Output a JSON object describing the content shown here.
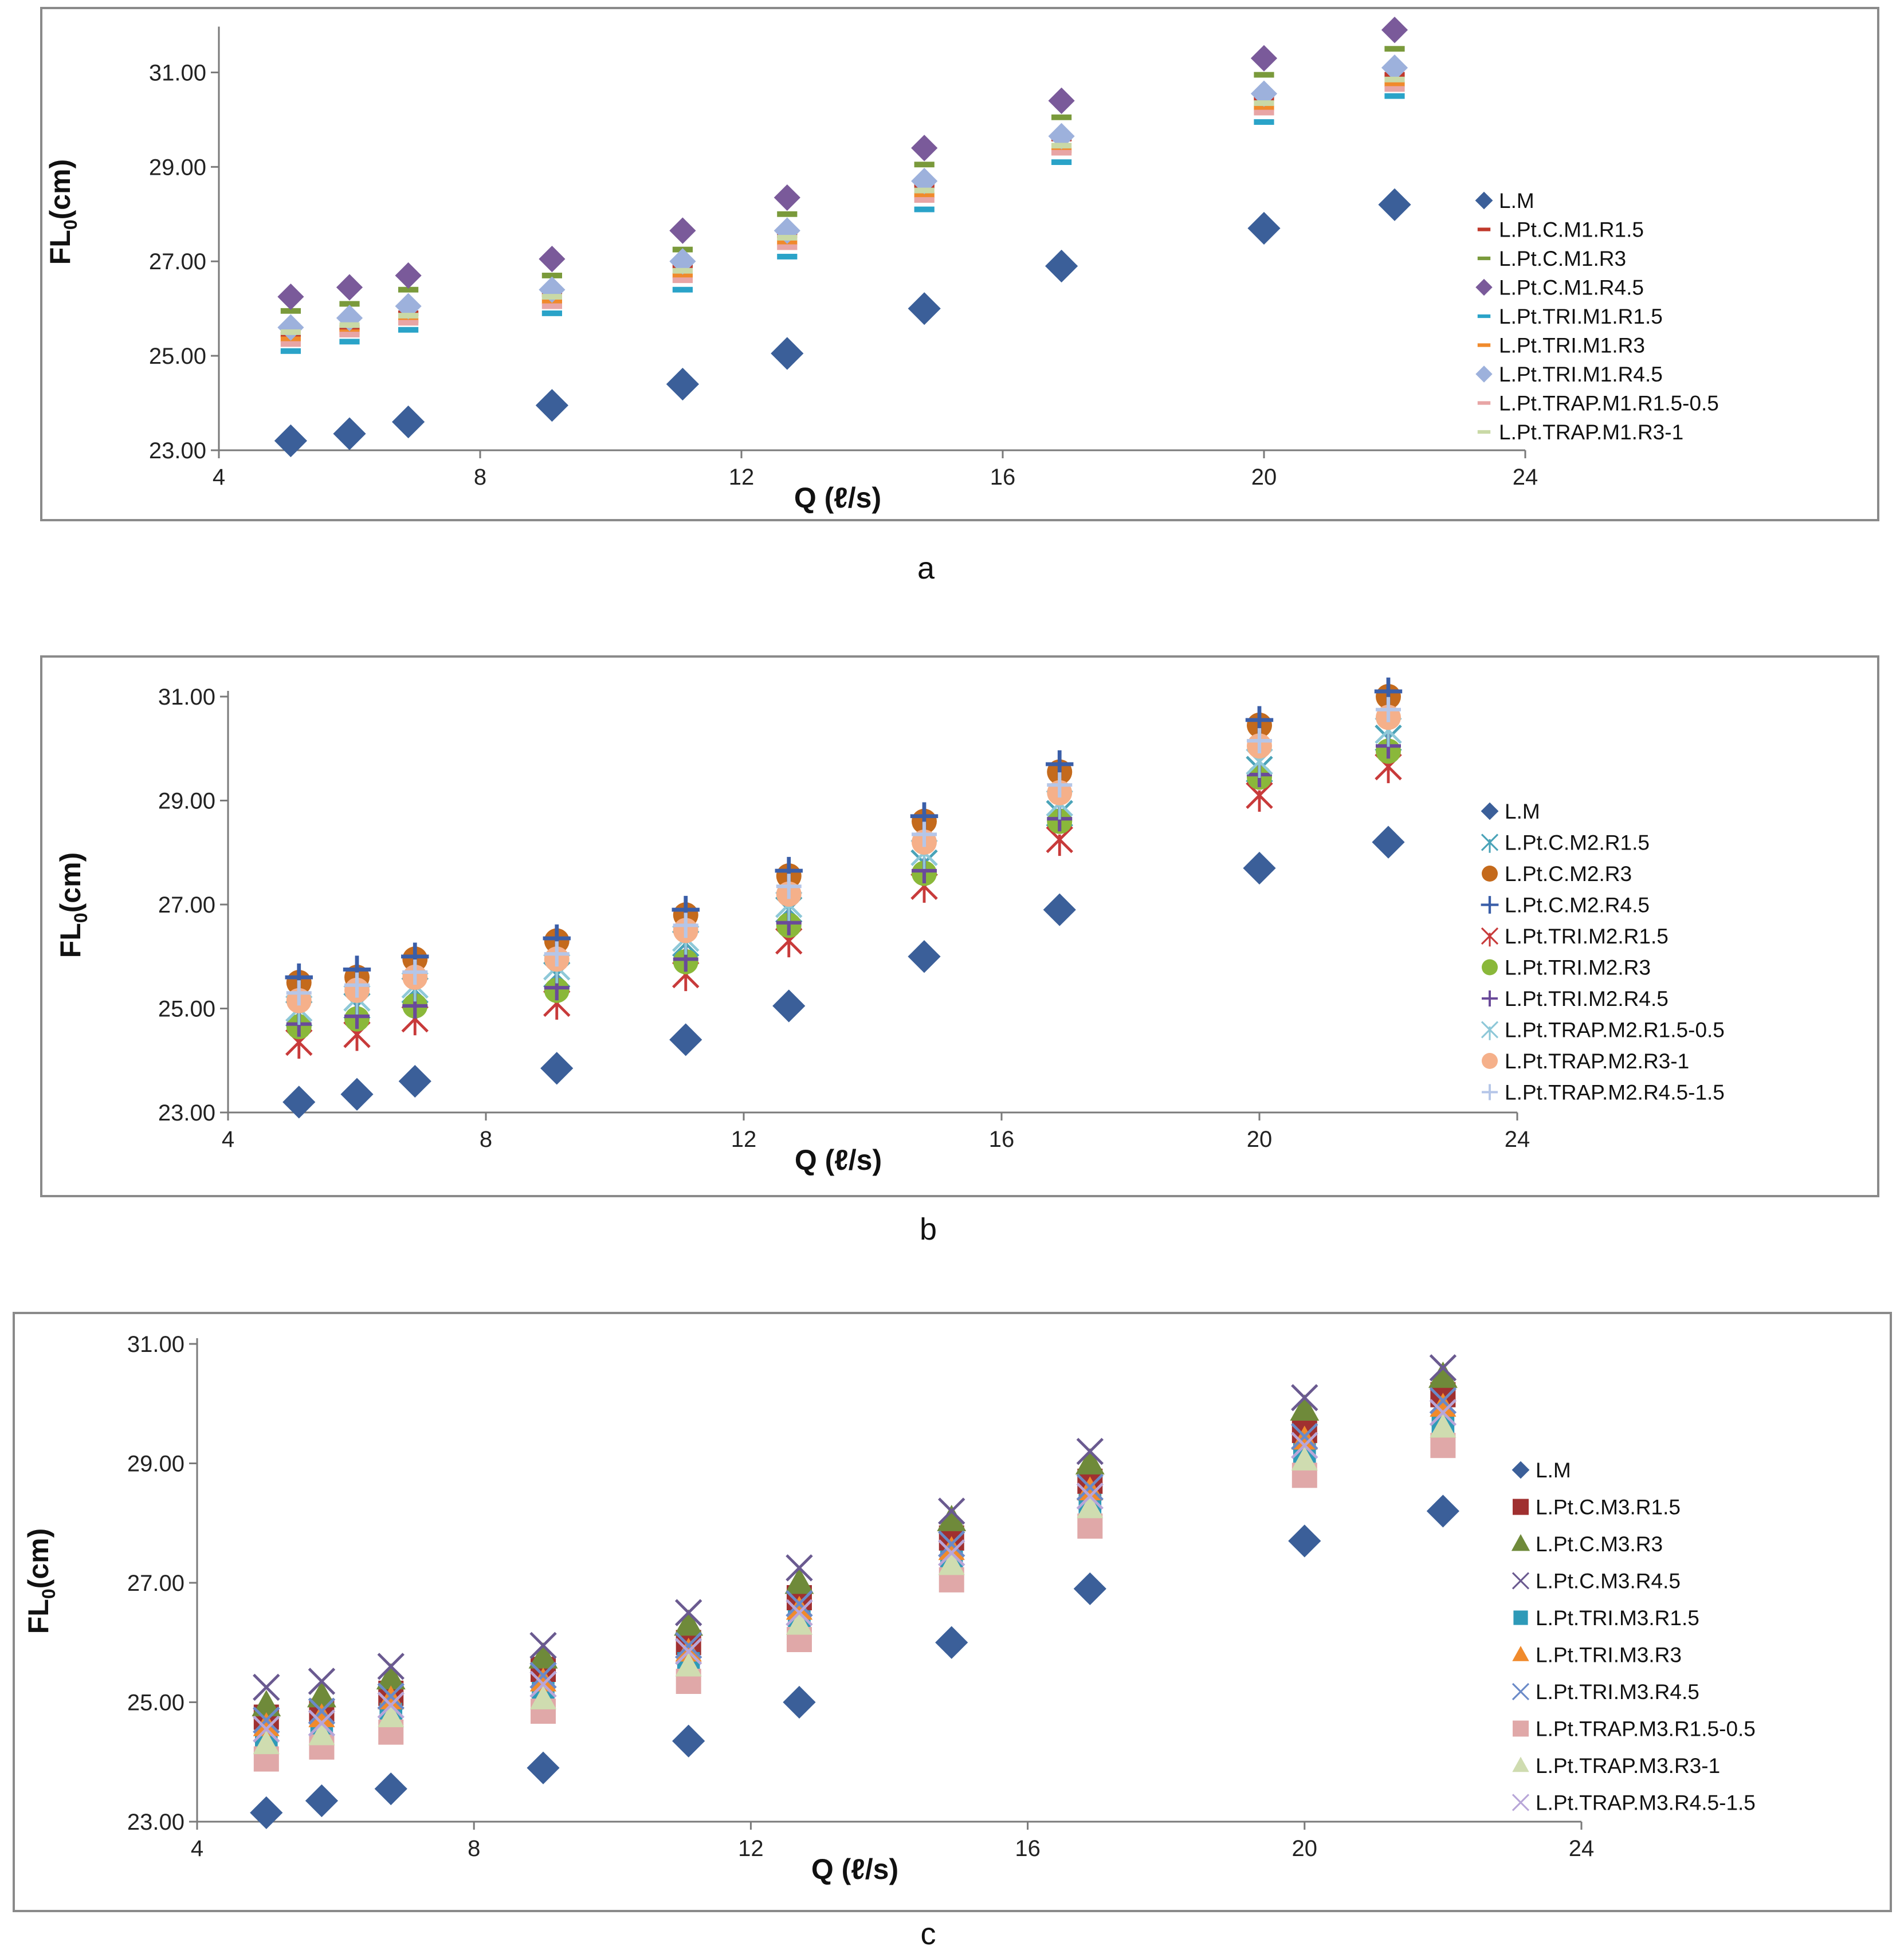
{
  "chart_data": [
    {
      "type": "scatter",
      "caption": "a",
      "xlabel": "Q (ℓ/s)",
      "ylabel_main": "FL",
      "ylabel_sub": "0",
      "ylabel_unit": "(cm)",
      "xlim": [
        4,
        24
      ],
      "ylim": [
        23,
        32
      ],
      "xticks": [
        4,
        8,
        12,
        16,
        20,
        24
      ],
      "yticks": [
        "23.00",
        "25.00",
        "27.00",
        "29.00",
        "31.00"
      ],
      "yticks_values": [
        23,
        25,
        27,
        29,
        31
      ],
      "legend_position": "right",
      "x": [
        5.1,
        6.0,
        6.9,
        9.1,
        11.1,
        12.7,
        14.8,
        16.9,
        20.0,
        22.0
      ],
      "series": [
        {
          "name": "L.M",
          "marker": "diamond",
          "color": "#3b5f99",
          "size": 1.3,
          "values": [
            23.2,
            23.35,
            23.6,
            23.95,
            24.4,
            25.05,
            26.0,
            26.9,
            27.7,
            28.2
          ]
        },
        {
          "name": "L.Pt.C.M1.R1.5",
          "marker": "dash",
          "color": "#c0392b",
          "size": 0.8,
          "values": [
            25.45,
            25.6,
            25.9,
            26.3,
            26.9,
            27.55,
            28.6,
            29.6,
            30.45,
            30.95
          ]
        },
        {
          "name": "L.Pt.C.M1.R3",
          "marker": "dash",
          "color": "#7a9a3b",
          "size": 0.8,
          "values": [
            25.95,
            26.1,
            26.4,
            26.7,
            27.25,
            28.0,
            29.05,
            30.05,
            30.95,
            31.5
          ]
        },
        {
          "name": "L.Pt.C.M1.R4.5",
          "marker": "diamond",
          "color": "#7a5a9a",
          "size": 1.05,
          "values": [
            26.25,
            26.45,
            26.7,
            27.05,
            27.65,
            28.35,
            29.4,
            30.4,
            31.3,
            31.9
          ]
        },
        {
          "name": "L.Pt.TRI.M1.R1.5",
          "marker": "dash",
          "color": "#2aa3c8",
          "size": 0.8,
          "values": [
            25.1,
            25.3,
            25.55,
            25.9,
            26.4,
            27.1,
            28.1,
            29.1,
            29.95,
            30.5
          ]
        },
        {
          "name": "L.Pt.TRI.M1.R3",
          "marker": "dash",
          "color": "#f08a2c",
          "size": 0.8,
          "values": [
            25.35,
            25.5,
            25.75,
            26.15,
            26.7,
            27.4,
            28.4,
            29.35,
            30.25,
            30.75
          ]
        },
        {
          "name": "L.Pt.TRI.M1.R4.5",
          "marker": "diamond",
          "color": "#9db1dc",
          "size": 1.05,
          "values": [
            25.6,
            25.8,
            26.05,
            26.4,
            27.0,
            27.65,
            28.7,
            29.65,
            30.55,
            31.1
          ]
        },
        {
          "name": "L.Pt.TRAP.M1.R1.5-0.5",
          "marker": "dash",
          "color": "#e8a5a5",
          "size": 0.8,
          "values": [
            25.25,
            25.45,
            25.7,
            26.05,
            26.6,
            27.3,
            28.3,
            29.3,
            30.15,
            30.65
          ]
        },
        {
          "name": "L.Pt.TRAP.M1.R3-1",
          "marker": "dash",
          "color": "#c9d9a6",
          "size": 0.8,
          "values": [
            25.5,
            25.65,
            25.85,
            26.25,
            26.8,
            27.5,
            28.5,
            29.45,
            30.35,
            30.85
          ]
        }
      ]
    },
    {
      "type": "scatter",
      "caption": "b",
      "xlabel": "Q (ℓ/s)",
      "ylabel_main": "FL",
      "ylabel_sub": "0",
      "ylabel_unit": "(cm)",
      "xlim": [
        4,
        24
      ],
      "ylim": [
        23,
        31
      ],
      "xticks": [
        4,
        8,
        12,
        16,
        20,
        24
      ],
      "yticks": [
        "23.00",
        "25.00",
        "27.00",
        "29.00",
        "31.00"
      ],
      "yticks_values": [
        23,
        25,
        27,
        29,
        31
      ],
      "legend_position": "right",
      "x": [
        5.1,
        6.0,
        6.9,
        9.1,
        11.1,
        12.7,
        14.8,
        16.9,
        20.0,
        22.0
      ],
      "series": [
        {
          "name": "L.M",
          "marker": "diamond",
          "color": "#3b5f99",
          "size": 1.3,
          "values": [
            23.2,
            23.35,
            23.6,
            23.85,
            24.4,
            25.05,
            26.0,
            26.9,
            27.7,
            28.2
          ]
        },
        {
          "name": "L.Pt.C.M2.R1.5",
          "marker": "xstar",
          "color": "#4aa3b8",
          "size": 1.0,
          "values": [
            24.9,
            25.05,
            25.35,
            25.65,
            26.25,
            26.9,
            27.8,
            28.75,
            29.6,
            30.2
          ]
        },
        {
          "name": "L.Pt.C.M2.R3",
          "marker": "circle",
          "color": "#c46a1c",
          "size": 1.0,
          "values": [
            25.5,
            25.6,
            25.95,
            26.3,
            26.8,
            27.55,
            28.6,
            29.55,
            30.45,
            31.0
          ]
        },
        {
          "name": "L.Pt.C.M2.R4.5",
          "marker": "plus",
          "color": "#3a5ea8",
          "size": 1.1,
          "values": [
            25.6,
            25.75,
            26.0,
            26.35,
            26.9,
            27.65,
            28.7,
            29.7,
            30.55,
            31.1
          ]
        },
        {
          "name": "L.Pt.TRI.M2.R1.5",
          "marker": "xstar",
          "color": "#c83a3a",
          "size": 1.0,
          "values": [
            24.35,
            24.5,
            24.8,
            25.1,
            25.65,
            26.3,
            27.35,
            28.25,
            29.1,
            29.65
          ]
        },
        {
          "name": "L.Pt.TRI.M2.R3",
          "marker": "circle",
          "color": "#8ab83a",
          "size": 1.0,
          "values": [
            24.65,
            24.8,
            25.05,
            25.35,
            25.9,
            26.6,
            27.6,
            28.6,
            29.45,
            29.95
          ]
        },
        {
          "name": "L.Pt.TRI.M2.R4.5",
          "marker": "plus",
          "color": "#6a4a9a",
          "size": 1.0,
          "values": [
            24.7,
            24.85,
            25.05,
            25.4,
            25.95,
            26.65,
            27.65,
            28.65,
            29.5,
            30.05
          ]
        },
        {
          "name": "L.Pt.TRAP.M2.R1.5-0.5",
          "marker": "xstar",
          "color": "#8ec8d8",
          "size": 1.0,
          "values": [
            25.0,
            25.2,
            25.45,
            25.8,
            26.35,
            27.0,
            28.0,
            28.95,
            29.75,
            30.35
          ]
        },
        {
          "name": "L.Pt.TRAP.M2.R3-1",
          "marker": "circle",
          "color": "#f5b08a",
          "size": 1.0,
          "values": [
            25.15,
            25.35,
            25.6,
            25.95,
            26.5,
            27.2,
            28.2,
            29.15,
            30.05,
            30.6
          ]
        },
        {
          "name": "L.Pt.TRAP.M2.R4.5-1.5",
          "marker": "plus",
          "color": "#b5c6e8",
          "size": 1.0,
          "values": [
            25.3,
            25.45,
            25.7,
            26.05,
            26.6,
            27.35,
            28.35,
            29.3,
            30.15,
            30.75
          ]
        }
      ]
    },
    {
      "type": "scatter",
      "caption": "c",
      "xlabel": "Q (ℓ/s)",
      "ylabel_main": "FL",
      "ylabel_sub": "0",
      "ylabel_unit": "(cm)",
      "xlim": [
        4,
        24
      ],
      "ylim": [
        23,
        31
      ],
      "xticks": [
        4,
        8,
        12,
        16,
        20,
        24
      ],
      "yticks": [
        "23.00",
        "25.00",
        "27.00",
        "29.00",
        "31.00"
      ],
      "yticks_values": [
        23,
        25,
        27,
        29,
        31
      ],
      "legend_position": "right",
      "x": [
        5.0,
        5.8,
        6.8,
        9.0,
        11.1,
        12.7,
        14.9,
        16.9,
        20.0,
        22.0
      ],
      "series": [
        {
          "name": "L.M",
          "marker": "diamond",
          "color": "#3b5f99",
          "size": 1.3,
          "values": [
            23.15,
            23.35,
            23.55,
            23.9,
            24.35,
            25.0,
            26.0,
            26.9,
            27.7,
            28.2
          ]
        },
        {
          "name": "L.Pt.C.M3.R1.5",
          "marker": "square",
          "color": "#a03030",
          "size": 1.0,
          "values": [
            24.75,
            24.85,
            25.15,
            25.55,
            26.0,
            26.75,
            27.75,
            28.7,
            29.55,
            30.15
          ]
        },
        {
          "name": "L.Pt.C.M3.R3",
          "marker": "triangle",
          "color": "#6f8a3a",
          "size": 1.1,
          "values": [
            24.95,
            25.1,
            25.4,
            25.75,
            26.3,
            27.0,
            28.05,
            29.0,
            29.9,
            30.45
          ]
        },
        {
          "name": "L.Pt.C.M3.R4.5",
          "marker": "cross",
          "color": "#6a5a90",
          "size": 1.0,
          "values": [
            25.25,
            25.35,
            25.6,
            25.95,
            26.5,
            27.25,
            28.2,
            29.2,
            30.1,
            30.6
          ]
        },
        {
          "name": "L.Pt.TRI.M3.R1.5",
          "marker": "square",
          "color": "#2e9ab8",
          "size": 0.9,
          "values": [
            24.35,
            24.5,
            24.8,
            25.15,
            25.65,
            26.35,
            27.35,
            28.3,
            29.15,
            29.65
          ]
        },
        {
          "name": "L.Pt.TRI.M3.R3",
          "marker": "triangle",
          "color": "#f08a2c",
          "size": 1.0,
          "values": [
            24.6,
            24.75,
            25.05,
            25.35,
            25.85,
            26.55,
            27.55,
            28.55,
            29.4,
            29.95
          ]
        },
        {
          "name": "L.Pt.TRI.M3.R4.5",
          "marker": "cross",
          "color": "#6a8ac8",
          "size": 1.0,
          "values": [
            24.7,
            24.85,
            25.1,
            25.45,
            25.95,
            26.65,
            27.65,
            28.6,
            29.45,
            30.05
          ]
        },
        {
          "name": "L.Pt.TRAP.M3.R1.5-0.5",
          "marker": "square",
          "color": "#e0a8a8",
          "size": 1.0,
          "values": [
            24.05,
            24.25,
            24.5,
            24.85,
            25.35,
            26.05,
            27.05,
            27.95,
            28.8,
            29.3
          ]
        },
        {
          "name": "L.Pt.TRAP.M3.R3-1",
          "marker": "triangle",
          "color": "#cfdcb0",
          "size": 1.0,
          "values": [
            24.3,
            24.45,
            24.75,
            25.05,
            25.6,
            26.3,
            27.3,
            28.25,
            29.05,
            29.6
          ]
        },
        {
          "name": "L.Pt.TRAP.M3.R4.5-1.5",
          "marker": "cross",
          "color": "#b8a6d8",
          "size": 1.0,
          "values": [
            24.55,
            24.65,
            24.95,
            25.3,
            25.85,
            26.5,
            27.5,
            28.45,
            29.3,
            29.85
          ]
        }
      ]
    }
  ]
}
